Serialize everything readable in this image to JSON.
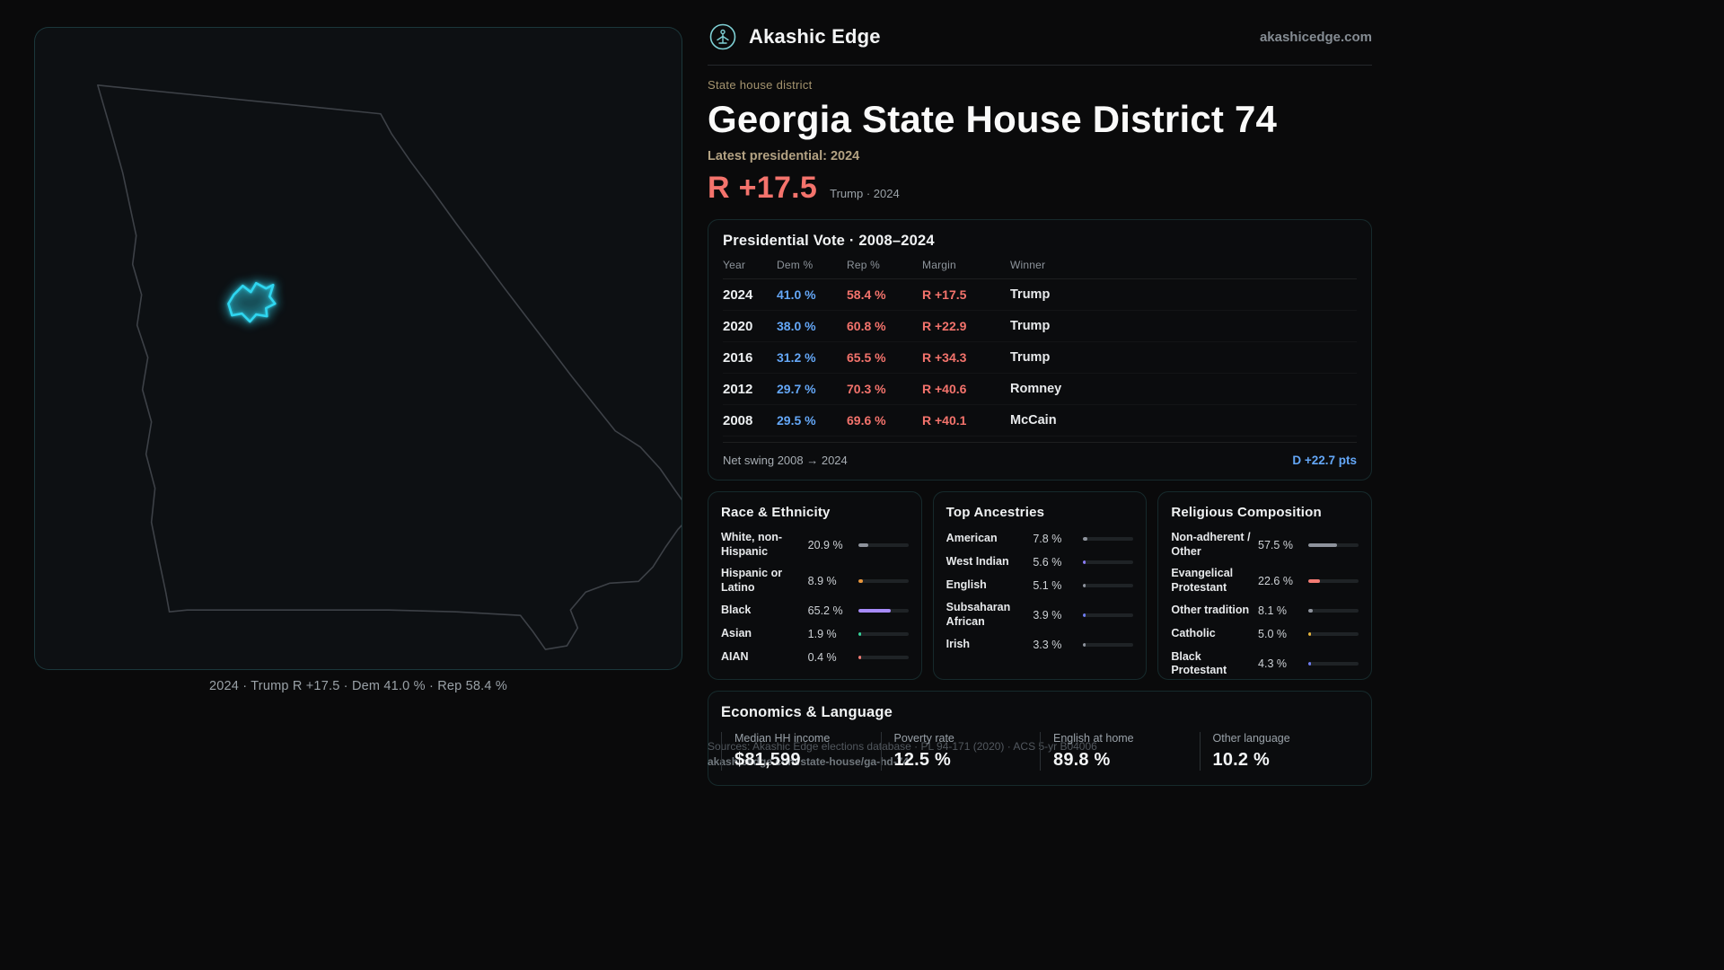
{
  "brand": {
    "name": "Akashic Edge",
    "domain": "akashicedge.com"
  },
  "hero": {
    "eyebrow": "State house district",
    "title": "Georgia State House District 74",
    "latest": "Latest presidential: 2024",
    "margin": "R +17.5",
    "margin_note": "Trump · 2024"
  },
  "map": {
    "caption": "2024 · Trump R +17.5 · Dem 41.0 % · Rep 58.4 %"
  },
  "colors": {
    "dem_blue": "#64a7f7",
    "rep_red": "#f4736c",
    "district_cyan": "#2fd6f0",
    "muted_gold": "#b3a283"
  },
  "vote": {
    "title": "Presidential Vote · 2008–2024",
    "columns": [
      "Year",
      "Dem %",
      "Rep %",
      "Margin",
      "Winner"
    ],
    "rows": [
      {
        "year": "2024",
        "dem": "41.0 %",
        "rep": "58.4 %",
        "margin": "R +17.5",
        "winner": "Trump"
      },
      {
        "year": "2020",
        "dem": "38.0 %",
        "rep": "60.8 %",
        "margin": "R +22.9",
        "winner": "Trump"
      },
      {
        "year": "2016",
        "dem": "31.2 %",
        "rep": "65.5 %",
        "margin": "R +34.3",
        "winner": "Trump"
      },
      {
        "year": "2012",
        "dem": "29.7 %",
        "rep": "70.3 %",
        "margin": "R +40.6",
        "winner": "Romney"
      },
      {
        "year": "2008",
        "dem": "29.5 %",
        "rep": "69.6 %",
        "margin": "R +40.1",
        "winner": "McCain"
      }
    ],
    "swing_label": "Net swing 2008 → 2024",
    "swing_value": "D +22.7 pts"
  },
  "demographics": {
    "race": {
      "title": "Race & Ethnicity",
      "items": [
        {
          "label": "White, non-Hispanic",
          "value": "20.9 %",
          "pct": 20.9,
          "color": "#8e939c"
        },
        {
          "label": "Hispanic or Latino",
          "value": "8.9 %",
          "pct": 8.9,
          "color": "#e8963c"
        },
        {
          "label": "Black",
          "value": "65.2 %",
          "pct": 65.2,
          "color": "#a78bfa"
        },
        {
          "label": "Asian",
          "value": "1.9 %",
          "pct": 1.9,
          "color": "#34d399"
        },
        {
          "label": "AIAN",
          "value": "0.4 %",
          "pct": 0.4,
          "color": "#f47c74"
        }
      ]
    },
    "ancestries": {
      "title": "Top Ancestries",
      "items": [
        {
          "label": "American",
          "value": "7.8 %",
          "pct": 7.8,
          "color": "#8e939c"
        },
        {
          "label": "West Indian",
          "value": "5.6 %",
          "pct": 5.6,
          "color": "#8b7cf6"
        },
        {
          "label": "English",
          "value": "5.1 %",
          "pct": 5.1,
          "color": "#8e939c"
        },
        {
          "label": "Subsaharan African",
          "value": "3.9 %",
          "pct": 3.9,
          "color": "#6d7cf0"
        },
        {
          "label": "Irish",
          "value": "3.3 %",
          "pct": 3.3,
          "color": "#8e939c"
        }
      ]
    },
    "religion": {
      "title": "Religious Composition",
      "items": [
        {
          "label": "Non-adherent / Other",
          "value": "57.5 %",
          "pct": 57.5,
          "color": "#8e939c"
        },
        {
          "label": "Evangelical Protestant",
          "value": "22.6 %",
          "pct": 22.6,
          "color": "#f47c74"
        },
        {
          "label": "Other tradition",
          "value": "8.1 %",
          "pct": 8.1,
          "color": "#8e939c"
        },
        {
          "label": "Catholic",
          "value": "5.0 %",
          "pct": 5.0,
          "color": "#e4b33c"
        },
        {
          "label": "Black Protestant",
          "value": "4.3 %",
          "pct": 4.3,
          "color": "#6d7cf0"
        }
      ]
    }
  },
  "economics": {
    "title": "Economics & Language",
    "stats": [
      {
        "label": "Median HH income",
        "value": "$81,599"
      },
      {
        "label": "Poverty rate",
        "value": "12.5 %"
      },
      {
        "label": "English at home",
        "value": "89.8 %"
      },
      {
        "label": "Other language",
        "value": "10.2 %"
      }
    ]
  },
  "footnotes": {
    "sources": "Sources: Akashic Edge elections database · PL 94-171 (2020) · ACS 5-yr B04006",
    "permalink": "akashicedge.com/state-house/ga-hd-74"
  }
}
